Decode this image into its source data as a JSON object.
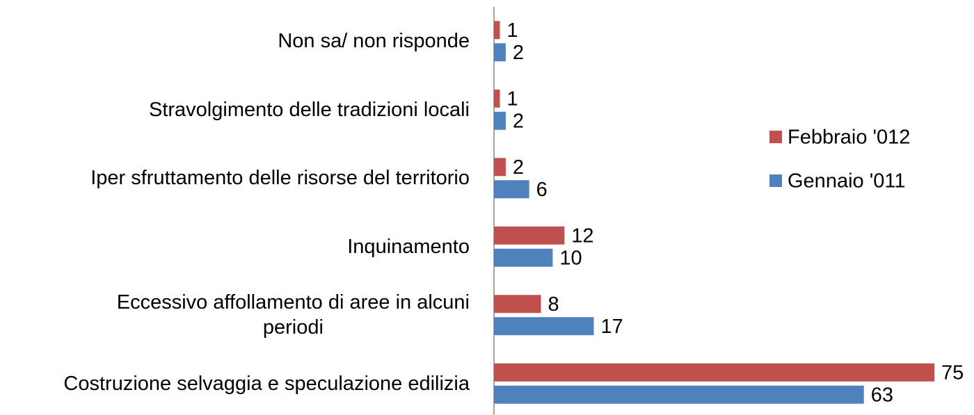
{
  "chart_data": {
    "type": "bar",
    "orientation": "horizontal",
    "categories": [
      "Non sa/ non risponde",
      "Stravolgimento delle tradizioni locali",
      "Iper sfruttamento delle risorse del territorio",
      "Inquinamento",
      "Eccessivo affollamento di aree in alcuni\nperiodi",
      "Costruzione selvaggia e speculazione edilizia"
    ],
    "series": [
      {
        "name": "Febbraio '012",
        "color": "#c0504d",
        "values": [
          1,
          1,
          2,
          12,
          8,
          75
        ]
      },
      {
        "name": "Gennaio '011",
        "color": "#4f81bd",
        "values": [
          2,
          2,
          6,
          10,
          17,
          63
        ]
      }
    ],
    "legend": "right"
  }
}
